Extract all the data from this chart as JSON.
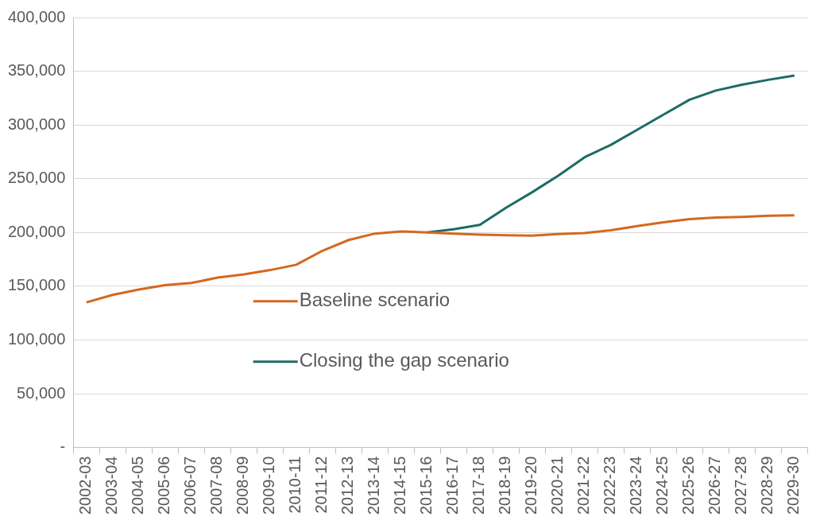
{
  "chart_data": {
    "type": "line",
    "categories": [
      "2002-03",
      "2003-04",
      "2004-05",
      "2005-06",
      "2006-07",
      "2007-08",
      "2008-09",
      "2009-10",
      "2010-11",
      "2011-12",
      "2012-13",
      "2013-14",
      "2014-15",
      "2015-16",
      "2016-17",
      "2017-18",
      "2018-19",
      "2019-20",
      "2020-21",
      "2021-22",
      "2022-23",
      "2023-24",
      "2024-25",
      "2025-26",
      "2026-27",
      "2027-28",
      "2028-29",
      "2029-30"
    ],
    "series": [
      {
        "name": "Baseline scenario",
        "color": "#d4681f",
        "values": [
          135000,
          142000,
          147000,
          151000,
          153000,
          158000,
          161000,
          165000,
          170000,
          183000,
          193000,
          199000,
          201000,
          200000,
          199000,
          198000,
          197500,
          197000,
          198500,
          199500,
          202000,
          206000,
          209500,
          212500,
          214000,
          214500,
          215500,
          216000
        ]
      },
      {
        "name": "Closing the gap scenario",
        "color": "#1e6b65",
        "values": [
          null,
          null,
          null,
          null,
          null,
          null,
          null,
          null,
          null,
          null,
          null,
          null,
          null,
          200000,
          203000,
          207000,
          223000,
          237500,
          253000,
          270000,
          281500,
          295500,
          309500,
          323500,
          332000,
          337500,
          342000,
          346000
        ]
      }
    ],
    "ylim": [
      0,
      400000
    ],
    "yticks": [
      {
        "value": 0,
        "label": "-"
      },
      {
        "value": 50000,
        "label": "50,000"
      },
      {
        "value": 100000,
        "label": "100,000"
      },
      {
        "value": 150000,
        "label": "150,000"
      },
      {
        "value": 200000,
        "label": "200,000"
      },
      {
        "value": 250000,
        "label": "250,000"
      },
      {
        "value": 300000,
        "label": "300,000"
      },
      {
        "value": 350000,
        "label": "350,000"
      },
      {
        "value": 400000,
        "label": "400,000"
      }
    ],
    "grid": "y",
    "legend": "center",
    "marker": "none",
    "line_style": "solid"
  }
}
